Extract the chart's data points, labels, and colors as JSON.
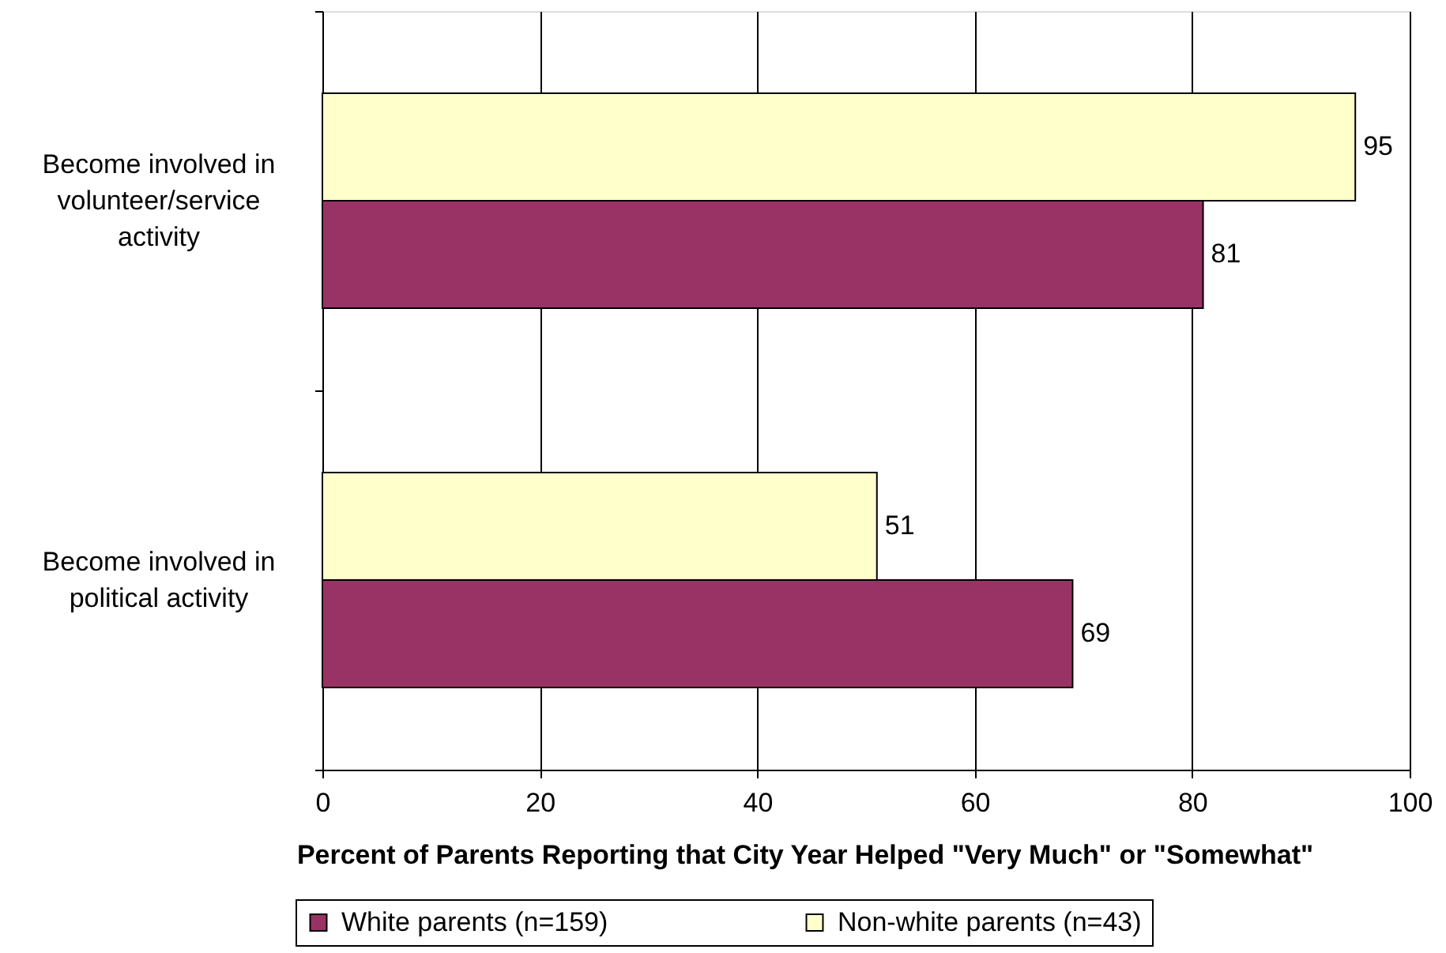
{
  "chart_data": {
    "type": "bar",
    "orientation": "horizontal",
    "categories": [
      "Become involved in volunteer/service activity",
      "Become involved in political activity"
    ],
    "series": [
      {
        "name": "White parents (n=159)",
        "color": "#993366",
        "values": [
          81,
          69
        ]
      },
      {
        "name": "Non-white parents (n=43)",
        "color": "#ffffcc",
        "values": [
          95,
          51
        ]
      }
    ],
    "xlabel": "Percent of Parents Reporting that City Year Helped \"Very Much\" or \"Somewhat\"",
    "xlim": [
      0,
      100
    ],
    "xticks": [
      0,
      20,
      40,
      60,
      80,
      100
    ],
    "grid": "x",
    "legend": "bottom",
    "data_labels": true
  }
}
